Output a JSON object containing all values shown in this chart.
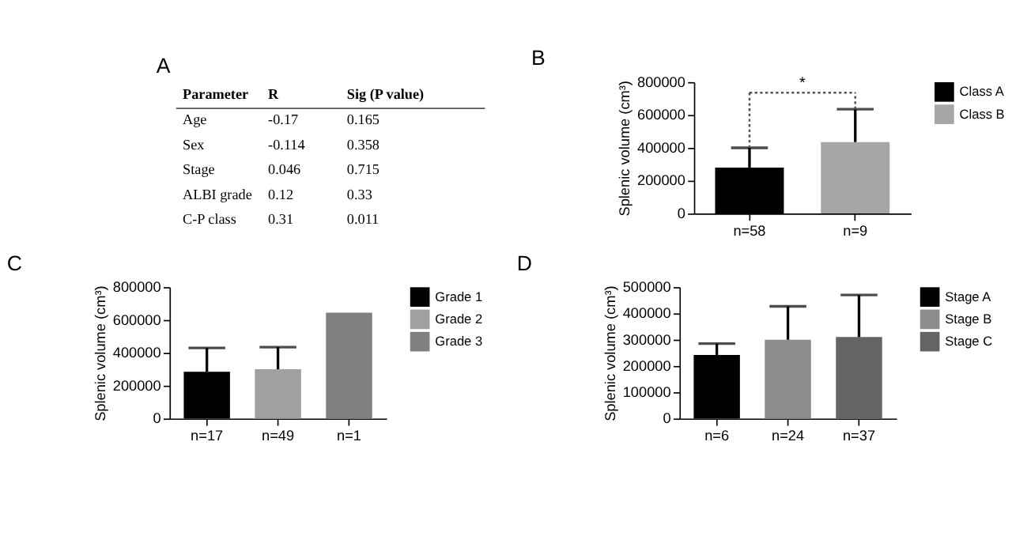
{
  "chart_data": [
    {
      "type": "other",
      "title": "A",
      "annotations": [
        "Parameter",
        "R",
        "Sig (P value)",
        "Age",
        "-0.17",
        "0.165",
        "Sex",
        "-0.114",
        "0.358",
        "Stage",
        "0.046",
        "0.715",
        "ALBI grade",
        "0.12",
        "0.33",
        "C-P class",
        "0.31",
        "0.011"
      ]
    },
    {
      "type": "bar",
      "title": "B",
      "ylabel": "Splenic volume (cm³)",
      "categories": [
        "n=58",
        "n=9"
      ],
      "ylim": [
        0,
        800000
      ],
      "yticks": [
        0,
        200000,
        400000,
        600000,
        800000
      ],
      "legend": "right",
      "annotations": [
        "*"
      ],
      "series": [
        {
          "name": "Class A",
          "color": "#000000",
          "values": [
            280000,
            null
          ],
          "errors": [
            [
              280000,
              400000
            ],
            null
          ]
        },
        {
          "name": "Class B",
          "color": "#a6a6a6",
          "values": [
            null,
            435000
          ],
          "errors": [
            null,
            [
              435000,
              635000
            ]
          ]
        }
      ]
    },
    {
      "type": "bar",
      "title": "C",
      "ylabel": "Splenic volume (cm³)",
      "categories": [
        "n=17",
        "n=49",
        "n=1"
      ],
      "ylim": [
        0,
        800000
      ],
      "yticks": [
        0,
        200000,
        400000,
        600000,
        800000
      ],
      "legend": "right",
      "series": [
        {
          "name": "Grade 1",
          "color": "#000000",
          "values": [
            285000,
            null,
            null
          ],
          "errors": [
            [
              285000,
              430000
            ],
            null,
            null
          ]
        },
        {
          "name": "Grade 2",
          "color": "#a0a0a0",
          "values": [
            null,
            300000,
            null
          ],
          "errors": [
            null,
            [
              300000,
              435000
            ],
            null
          ]
        },
        {
          "name": "Grade 3",
          "color": "#808080",
          "values": [
            null,
            null,
            645000
          ]
        }
      ]
    },
    {
      "type": "bar",
      "title": "D",
      "ylabel": "Splenic volume (cm³)",
      "categories": [
        "n=6",
        "n=24",
        "n=37"
      ],
      "ylim": [
        0,
        500000
      ],
      "yticks": [
        0,
        100000,
        200000,
        300000,
        400000,
        500000
      ],
      "legend": "right",
      "series": [
        {
          "name": "Stage A",
          "color": "#000000",
          "values": [
            242000,
            null,
            null
          ],
          "errors": [
            [
              242000,
              285000
            ],
            null,
            null
          ]
        },
        {
          "name": "Stage B",
          "color": "#8c8c8c",
          "values": [
            null,
            300000,
            null
          ],
          "errors": [
            null,
            [
              300000,
              427000
            ],
            null
          ]
        },
        {
          "name": "Stage C",
          "color": "#646464",
          "values": [
            null,
            null,
            310000
          ],
          "errors": [
            null,
            null,
            [
              310000,
              470000
            ]
          ]
        }
      ]
    }
  ]
}
